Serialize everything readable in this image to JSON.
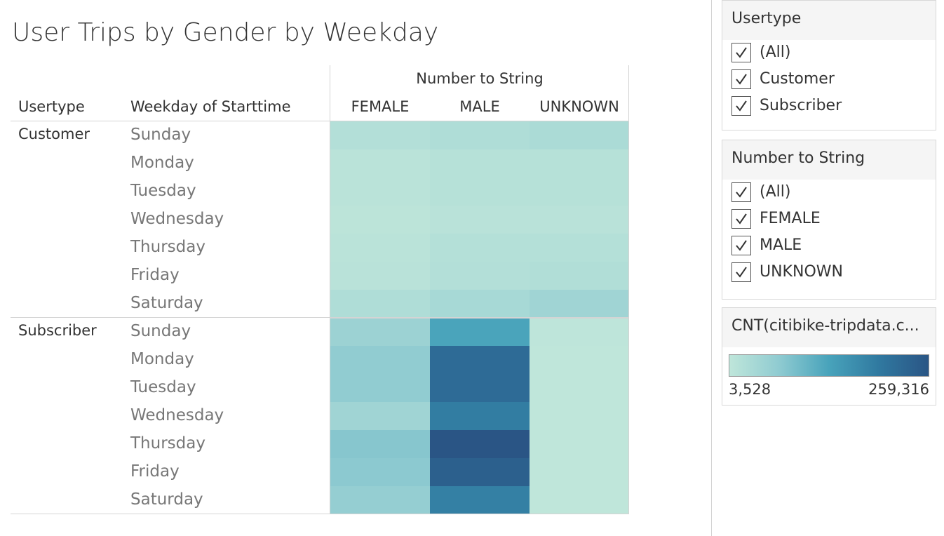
{
  "title": "User Trips by Gender by Weekday",
  "headers": {
    "usertype": "Usertype",
    "weekday": "Weekday of Starttime",
    "group": "Number to String"
  },
  "chart_data": {
    "type": "heatmap",
    "title": "User Trips by Gender by Weekday",
    "column_group_label": "Number to String",
    "columns": [
      "FEMALE",
      "MALE",
      "UNKNOWN"
    ],
    "row_dimensions": [
      "Usertype",
      "Weekday of Starttime"
    ],
    "groups": [
      {
        "usertype": "Customer",
        "days": [
          "Sunday",
          "Monday",
          "Tuesday",
          "Wednesday",
          "Thursday",
          "Friday",
          "Saturday"
        ],
        "values": [
          [
            20000,
            25000,
            30000
          ],
          [
            10000,
            15000,
            15000
          ],
          [
            10000,
            15000,
            15000
          ],
          [
            8000,
            12000,
            12000
          ],
          [
            10000,
            18000,
            18000
          ],
          [
            12000,
            20000,
            22000
          ],
          [
            25000,
            35000,
            45000
          ]
        ]
      },
      {
        "usertype": "Subscriber",
        "days": [
          "Sunday",
          "Monday",
          "Tuesday",
          "Wednesday",
          "Thursday",
          "Friday",
          "Saturday"
        ],
        "values": [
          [
            50000,
            130000,
            5000
          ],
          [
            65000,
            220000,
            4000
          ],
          [
            65000,
            220000,
            4000
          ],
          [
            45000,
            190000,
            4000
          ],
          [
            75000,
            259316,
            3528
          ],
          [
            70000,
            240000,
            4000
          ],
          [
            60000,
            185000,
            4000
          ]
        ]
      }
    ],
    "color_scale": {
      "label": "CNT(citibike-tripdata.c...",
      "min": 3528,
      "max": 259316,
      "min_label": "3,528",
      "max_label": "259,316",
      "colors": [
        "#bfe6da",
        "#8fcbd1",
        "#48a3bb",
        "#3079a0",
        "#2a5585"
      ]
    }
  },
  "filters": [
    {
      "title": "Usertype",
      "items": [
        "(All)",
        "Customer",
        "Subscriber"
      ]
    },
    {
      "title": "Number to String",
      "items": [
        "(All)",
        "FEMALE",
        "MALE",
        "UNKNOWN"
      ]
    }
  ],
  "legend": {
    "title": "CNT(citibike-tripdata.c...",
    "min_label": "3,528",
    "max_label": "259,316"
  }
}
